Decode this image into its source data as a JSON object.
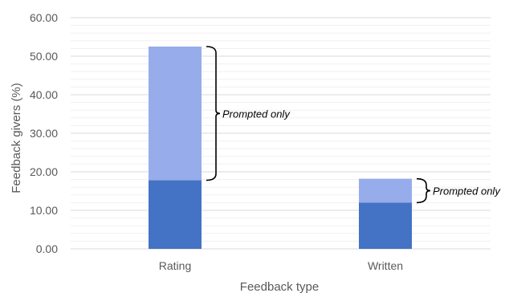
{
  "chart_data": {
    "type": "bar",
    "stacked": true,
    "categories": [
      "Rating",
      "Written"
    ],
    "series": [
      {
        "name": "",
        "values": [
          17.8,
          12.0
        ],
        "color": "#4472c4"
      },
      {
        "name": "",
        "values": [
          34.7,
          6.2
        ],
        "color": "#97acea"
      }
    ],
    "xlabel": "Feedback type",
    "ylabel": "Feedback givers (%)",
    "ylim": [
      0,
      60
    ],
    "yticks": [
      "0.00",
      "10.00",
      "20.00",
      "30.00",
      "40.00",
      "50.00",
      "60.00"
    ],
    "minor_grid_step": 2,
    "grid": true,
    "annotations": [
      {
        "text": "Prompted only",
        "category": "Rating",
        "range": [
          17.8,
          52.5
        ]
      },
      {
        "text": "Prompted only",
        "category": "Written",
        "range": [
          12.0,
          18.2
        ]
      }
    ]
  }
}
